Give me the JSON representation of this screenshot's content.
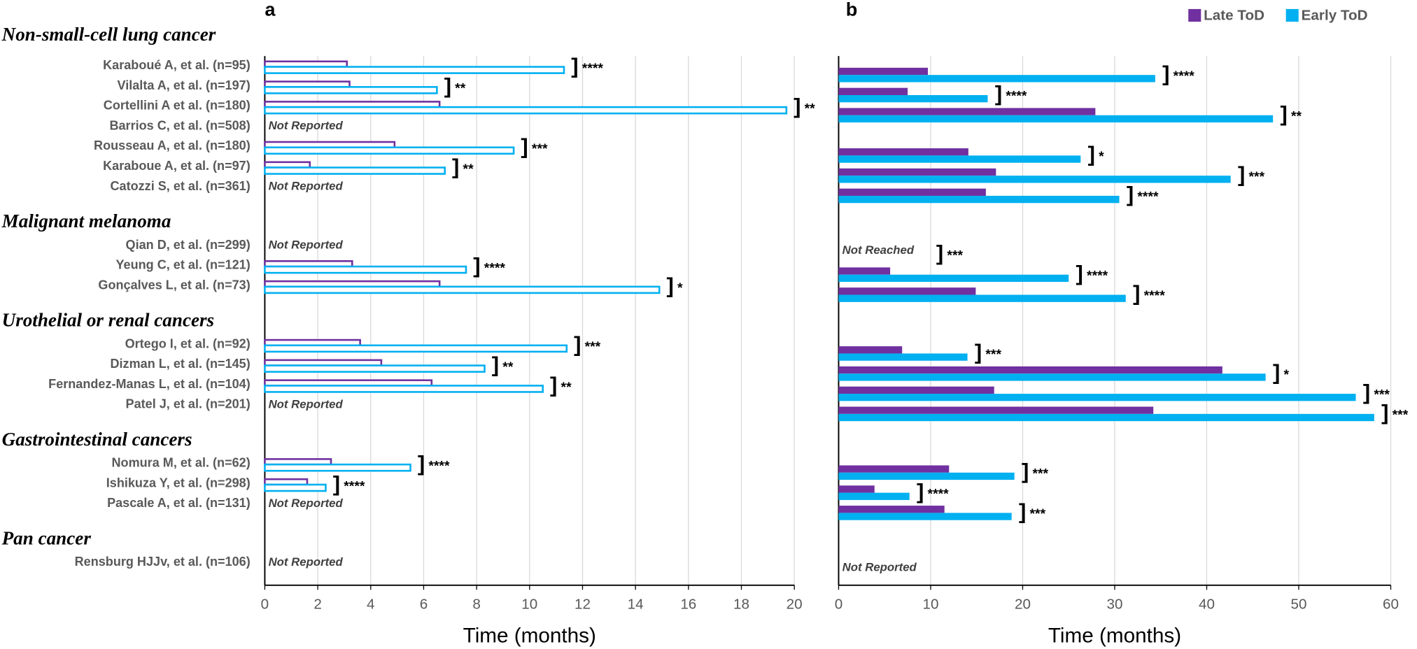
{
  "chart_data": [
    {
      "type": "bar",
      "orientation": "horizontal",
      "panel": "a",
      "bar_style": "outline",
      "groups": [
        {
          "name": "Non-small-cell lung cancer",
          "categories": [
            "Karaboué A, et al. (n=95)",
            "Vilalta A, et al. (n=197)",
            "Cortellini A et al. (n=180)",
            "Barrios C, et al. (n=508)",
            "Rousseau A, et al. (n=180)",
            "Karaboue A, et al. (n=97)",
            "Catozzi S, et al. (n=361)"
          ]
        },
        {
          "name": "Malignant melanoma",
          "categories": [
            "Qian D, et al. (n=299)",
            "Yeung C, et al. (n=121)",
            "Gonçalves L, et al. (n=73)"
          ]
        },
        {
          "name": "Urothelial or renal cancers",
          "categories": [
            "Ortego I, et al. (n=92)",
            "Dizman L, et al. (n=145)",
            "Fernandez-Manas L, et al. (n=104)",
            "Patel J, et al. (n=201)"
          ]
        },
        {
          "name": "Gastrointestinal cancers",
          "categories": [
            "Nomura M, et al. (n=62)",
            "Ishikuza Y, et al. (n=298)",
            "Pascale A, et al. (n=131)"
          ]
        },
        {
          "name": "Pan cancer",
          "categories": [
            "Rensburg HJJv, et al. (n=106)"
          ]
        }
      ],
      "series": [
        {
          "color": "#7030a0",
          "values": [
            3.1,
            3.2,
            6.6,
            null,
            4.9,
            1.7,
            null,
            null,
            3.3,
            6.6,
            3.6,
            4.4,
            6.3,
            null,
            2.5,
            1.6,
            null,
            null
          ]
        },
        {
          "color": "#00b0f0",
          "values": [
            11.3,
            6.5,
            19.7,
            null,
            9.4,
            6.8,
            null,
            null,
            7.6,
            14.9,
            11.4,
            8.3,
            10.5,
            null,
            5.5,
            2.3,
            null,
            null
          ]
        }
      ],
      "notes": [
        null,
        null,
        null,
        "Not Reported",
        null,
        null,
        "Not Reported",
        "Not Reported",
        null,
        null,
        null,
        null,
        null,
        "Not Reported",
        null,
        null,
        "Not Reported",
        "Not Reported"
      ],
      "significance": [
        "****",
        "**",
        "**",
        null,
        "***",
        "**",
        null,
        null,
        "****",
        "*",
        "***",
        "**",
        "**",
        null,
        "****",
        "****",
        null,
        null
      ],
      "x_label": "Time (months)",
      "xlim": [
        0,
        20
      ],
      "xticks": [
        0,
        2,
        4,
        6,
        8,
        10,
        12,
        14,
        16,
        18,
        20
      ],
      "grid": true
    },
    {
      "type": "bar",
      "orientation": "horizontal",
      "panel": "b",
      "bar_style": "solid",
      "legend": "top-right",
      "series": [
        {
          "name": "Late ToD",
          "color": "#7030a0",
          "values": [
            9.7,
            7.5,
            27.9,
            null,
            14.1,
            17.1,
            16.0,
            null,
            5.6,
            14.9,
            6.9,
            41.7,
            16.9,
            34.2,
            12.0,
            3.9,
            11.5,
            null
          ]
        },
        {
          "name": "Early ToD",
          "color": "#00b0f0",
          "values": [
            34.4,
            16.2,
            47.2,
            null,
            26.3,
            42.6,
            30.5,
            null,
            25.0,
            31.2,
            14.0,
            46.4,
            56.2,
            58.2,
            19.1,
            7.7,
            18.8,
            null
          ]
        }
      ],
      "notes": [
        null,
        null,
        null,
        null,
        null,
        null,
        null,
        "Not Reached",
        null,
        null,
        null,
        null,
        null,
        null,
        null,
        null,
        null,
        "Not Reported"
      ],
      "significance": [
        "****",
        "****",
        "**",
        null,
        "*",
        "***",
        "****",
        "***",
        "****",
        "****",
        "***",
        "*",
        "***",
        "***",
        "***",
        "****",
        "***",
        null
      ],
      "x_label": "Time (months)",
      "xlim": [
        0,
        60
      ],
      "xticks": [
        0,
        10,
        20,
        30,
        40,
        50,
        60
      ],
      "grid": true
    }
  ]
}
